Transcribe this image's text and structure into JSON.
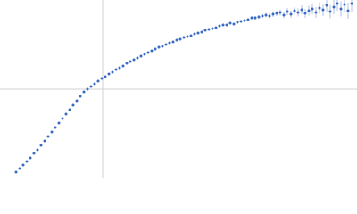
{
  "chart_data": {
    "type": "scatter",
    "color": "#3b6cc5",
    "xlim": [
      0,
      400
    ],
    "ylim": [
      0,
      200
    ],
    "xline": 115,
    "yline": 100,
    "x": [
      18,
      22,
      26,
      30,
      34,
      38,
      42,
      46,
      50,
      54,
      58,
      62,
      66,
      70,
      74,
      78,
      82,
      86,
      90,
      94,
      98,
      102,
      106,
      110,
      114,
      118,
      122,
      126,
      130,
      134,
      138,
      142,
      146,
      150,
      154,
      158,
      162,
      166,
      170,
      174,
      178,
      182,
      186,
      190,
      194,
      198,
      202,
      206,
      210,
      214,
      218,
      222,
      226,
      230,
      234,
      238,
      242,
      246,
      250,
      254,
      258,
      262,
      266,
      270,
      274,
      278,
      282,
      286,
      290,
      294,
      298,
      302,
      306,
      310,
      314,
      318,
      322,
      326,
      330,
      334,
      338,
      342,
      346,
      350,
      354,
      358,
      362,
      366,
      370,
      374,
      378,
      382,
      386,
      390,
      394
    ],
    "values": [
      7,
      11,
      15,
      19,
      23,
      28,
      32,
      37,
      42,
      47,
      52,
      57,
      62,
      67,
      72,
      77,
      82,
      87,
      92,
      97,
      100,
      103,
      106,
      109,
      112,
      114,
      117,
      119,
      122,
      124,
      126,
      129,
      131,
      133,
      135,
      137,
      139,
      141,
      143,
      145,
      147,
      148,
      150,
      152,
      153,
      155,
      156,
      158,
      159,
      160,
      162,
      163,
      164,
      166,
      167,
      168,
      169,
      171,
      172,
      172,
      174,
      173,
      175,
      176,
      177,
      178,
      180,
      180,
      181,
      182,
      183,
      182,
      184,
      185,
      186,
      183,
      187,
      184,
      188,
      186,
      189,
      185,
      188,
      190,
      186,
      191,
      189,
      194,
      187,
      192,
      196,
      190,
      195,
      188,
      196
    ],
    "errors": [
      0.5,
      0.5,
      0.5,
      0.5,
      0.5,
      0.5,
      0.5,
      0.5,
      0.5,
      0.5,
      0.5,
      0.5,
      0.5,
      0.5,
      0.5,
      0.5,
      0.5,
      0.5,
      0.5,
      0.5,
      0.5,
      0.5,
      0.5,
      0.5,
      0.5,
      0.5,
      0.5,
      0.5,
      0.5,
      0.5,
      0.5,
      0.5,
      0.5,
      0.5,
      0.5,
      0.5,
      0.5,
      0.5,
      0.5,
      0.5,
      0.5,
      0.5,
      0.5,
      0.5,
      0.5,
      0.5,
      0.5,
      0.5,
      0.5,
      0.5,
      0.5,
      0.5,
      0.5,
      0.5,
      0.5,
      0.5,
      0.5,
      0.5,
      0.5,
      0.5,
      1,
      1,
      1,
      1.5,
      1.5,
      1.5,
      2,
      2,
      2,
      2.5,
      2.5,
      3,
      3,
      3,
      3.5,
      3.5,
      4,
      4,
      4,
      4.5,
      5,
      5,
      5.5,
      6,
      6,
      6.5,
      7,
      7,
      7.5,
      8,
      8,
      8.5,
      9,
      9,
      10
    ]
  }
}
